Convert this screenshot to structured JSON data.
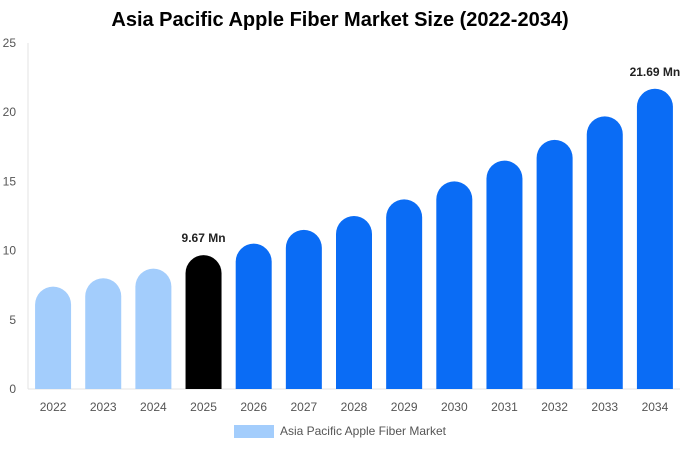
{
  "chart_data": {
    "type": "bar",
    "title": "Asia Pacific Apple Fiber Market Size (2022-2034)",
    "xlabel": "",
    "ylabel": "",
    "categories": [
      "2022",
      "2023",
      "2024",
      "2025",
      "2026",
      "2027",
      "2028",
      "2029",
      "2030",
      "2031",
      "2032",
      "2033",
      "2034"
    ],
    "series": [
      {
        "name": "Asia Pacific Apple Fiber Market",
        "values": [
          7.4,
          8.0,
          8.7,
          9.67,
          10.5,
          11.5,
          12.5,
          13.7,
          15.0,
          16.5,
          18.0,
          19.7,
          21.69
        ]
      }
    ],
    "ylim": [
      0,
      25
    ],
    "yticks": [
      "0",
      "5",
      "10",
      "15",
      "20",
      "25"
    ],
    "data_labels": [
      {
        "index": 3,
        "text": "9.67 Mn"
      },
      {
        "index": 12,
        "text": "21.69 Mn"
      }
    ],
    "colors": {
      "historical": "#a3cdfc",
      "current": "#000000",
      "forecast": "#0a6cf5"
    },
    "segments": {
      "historical_indices": [
        0,
        1,
        2
      ],
      "current_index": 3
    },
    "grid": false,
    "legend_position": "bottom-center"
  }
}
